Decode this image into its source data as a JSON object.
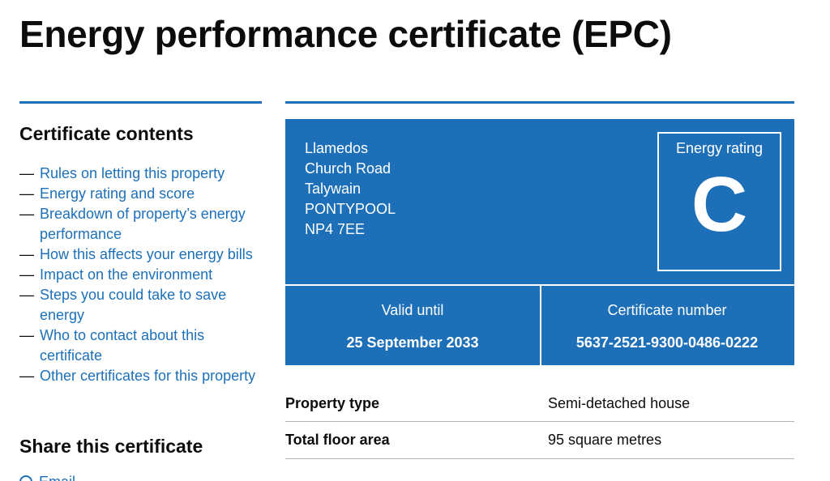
{
  "page_title": "Energy performance certificate (EPC)",
  "sidebar": {
    "heading": "Certificate contents",
    "items": [
      {
        "label": "Rules on letting this property"
      },
      {
        "label": "Energy rating and score"
      },
      {
        "label": "Breakdown of property’s energy performance"
      },
      {
        "label": "How this affects your energy bills"
      },
      {
        "label": "Impact on the environment"
      },
      {
        "label": "Steps you could take to save energy"
      },
      {
        "label": "Who to contact about this certificate"
      },
      {
        "label": "Other certificates for this property"
      }
    ],
    "dash": "—",
    "share_heading": "Share this certificate",
    "email_label": "Email"
  },
  "certificate": {
    "address": [
      "Llamedos",
      "Church Road",
      "Talywain",
      "PONTYPOOL",
      "NP4 7EE"
    ],
    "energy_rating_label": "Energy rating",
    "energy_rating": "C",
    "valid_until_label": "Valid until",
    "valid_until": "25 September 2033",
    "certificate_number_label": "Certificate number",
    "certificate_number": "5637-2521-9300-0486-0222"
  },
  "summary": [
    {
      "key": "Property type",
      "value": "Semi-detached house"
    },
    {
      "key": "Total floor area",
      "value": "95 square metres"
    }
  ],
  "colors": {
    "brand_blue": "#1d70b8",
    "text": "#0b0c0c",
    "border": "#b1b4b6"
  }
}
